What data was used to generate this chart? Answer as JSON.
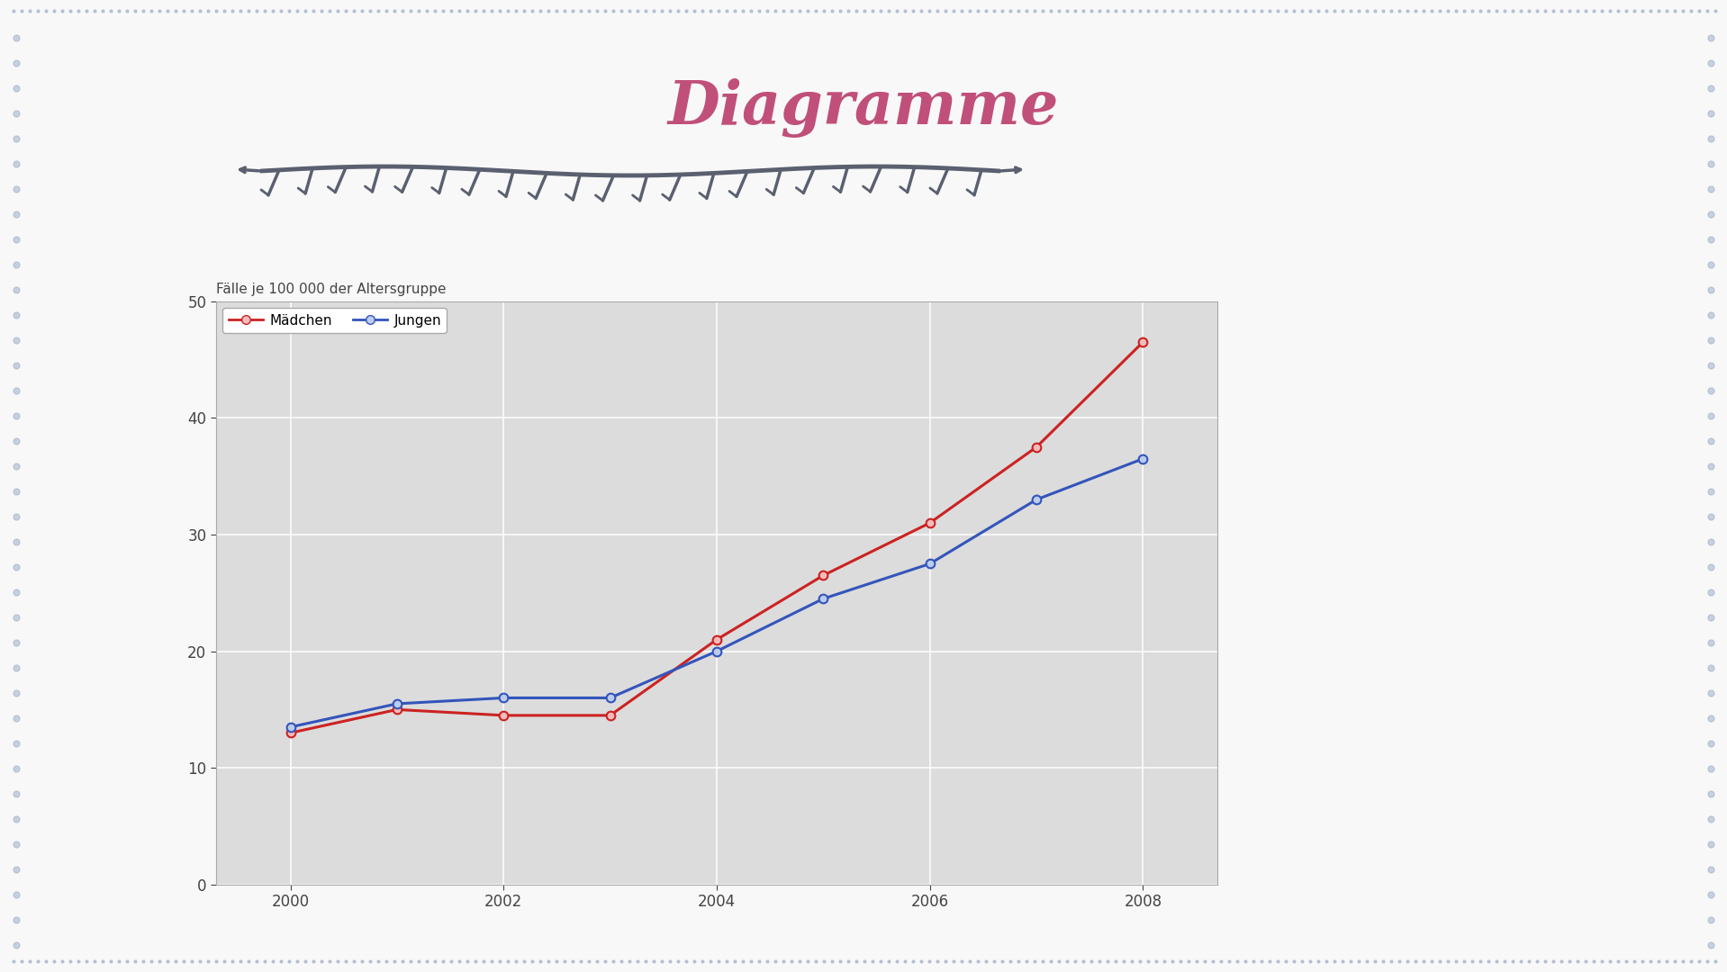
{
  "title": "Diagramme",
  "title_color": "#c0507a",
  "title_fontsize": 48,
  "background_color": "#f8f8f8",
  "chart_bg_color": "#dcdcdc",
  "chart_title": "Fälle je 100 000 der Altersgruppe",
  "years": [
    2000,
    2001,
    2002,
    2003,
    2004,
    2005,
    2006,
    2007,
    2008
  ],
  "madchen": [
    13.0,
    15.0,
    14.5,
    14.5,
    21.0,
    26.5,
    31.0,
    37.5,
    46.5
  ],
  "jungen": [
    13.5,
    15.5,
    16.0,
    16.0,
    20.0,
    24.5,
    27.5,
    33.0,
    36.5
  ],
  "madchen_color": "#cc2222",
  "jungen_color": "#3355bb",
  "ylim": [
    0,
    50
  ],
  "yticks": [
    0,
    10,
    20,
    30,
    40,
    50
  ],
  "xticks": [
    2000,
    2002,
    2004,
    2006,
    2008
  ],
  "legend_labels": [
    "Mädchen",
    "Jungen"
  ],
  "branch_color": "#5a6070",
  "dot_color": "#9fb0c8"
}
